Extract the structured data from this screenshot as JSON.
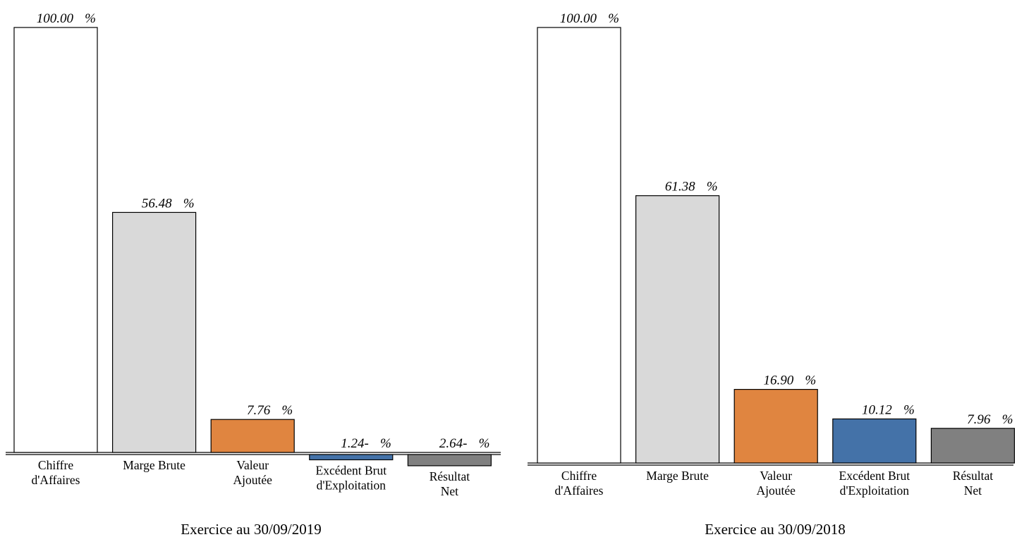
{
  "chart_data": [
    {
      "type": "bar",
      "title": "Exercice au 30/09/2019",
      "categories": [
        "Chiffre\nd'Affaires",
        "Marge Brute",
        "Valeur\nAjoutée",
        "Excédent Brut\nd'Exploitation",
        "Résultat\nNet"
      ],
      "values": [
        100.0,
        56.48,
        7.76,
        -1.24,
        -2.64
      ],
      "value_labels": [
        "100.00",
        "56.48",
        "7.76",
        "1.24-",
        "2.64-"
      ],
      "unit": "%",
      "bar_colors": [
        "#ffffff",
        "#d9d9d9",
        "#e08540",
        "#4472a8",
        "#808080"
      ],
      "grid": false,
      "legend": "none"
    },
    {
      "type": "bar",
      "title": "Exercice au 30/09/2018",
      "categories": [
        "Chiffre\nd'Affaires",
        "Marge Brute",
        "Valeur\nAjoutée",
        "Excédent Brut\nd'Exploitation",
        "Résultat\nNet"
      ],
      "values": [
        100.0,
        61.38,
        16.9,
        10.12,
        7.96
      ],
      "value_labels": [
        "100.00",
        "61.38",
        "16.90",
        "10.12",
        "7.96"
      ],
      "unit": "%",
      "bar_colors": [
        "#ffffff",
        "#d9d9d9",
        "#e08540",
        "#4472a8",
        "#808080"
      ],
      "grid": false,
      "legend": "none"
    }
  ]
}
